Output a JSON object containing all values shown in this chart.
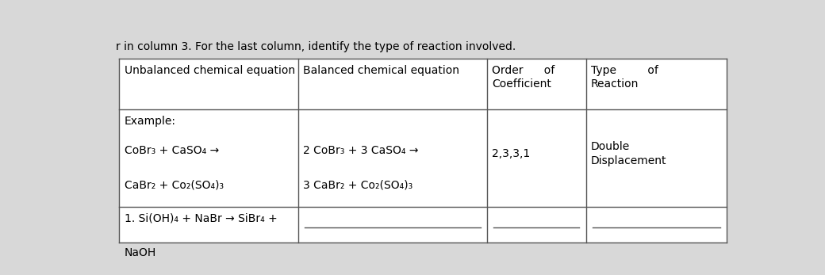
{
  "background_color": "#d8d8d8",
  "table_bg": "#ffffff",
  "border_color": "#555555",
  "title_text": "r in column 3. For the last column, identify the type of reaction involved.",
  "header_col0": "Unbalanced chemical equation",
  "header_col1": "Balanced chemical equation",
  "header_col2_line1": "Order      of",
  "header_col2_line2": "Coefficient",
  "header_col3_line1": "Type         of",
  "header_col3_line2": "Reaction",
  "example_label": "Example:",
  "example_unbalanced_line1": "CoBr₃ + CaSO₄ →",
  "example_unbalanced_line2": "CaBr₂ + Co₂(SO₄)₃",
  "example_balanced_line1": "2 CoBr₃ + 3 CaSO₄ →",
  "example_balanced_line2": "3 CaBr₂ + Co₂(SO₄)₃",
  "example_coefficient": "2,3,3,1",
  "example_reaction_line1": "Double",
  "example_reaction_line2": "Displacement",
  "row1_unbalanced_line1": "1. Si(OH)₄ + NaBr → SiBr₄ +",
  "row1_unbalanced_line2": "NaOH",
  "font_size": 10,
  "font_size_title": 10
}
